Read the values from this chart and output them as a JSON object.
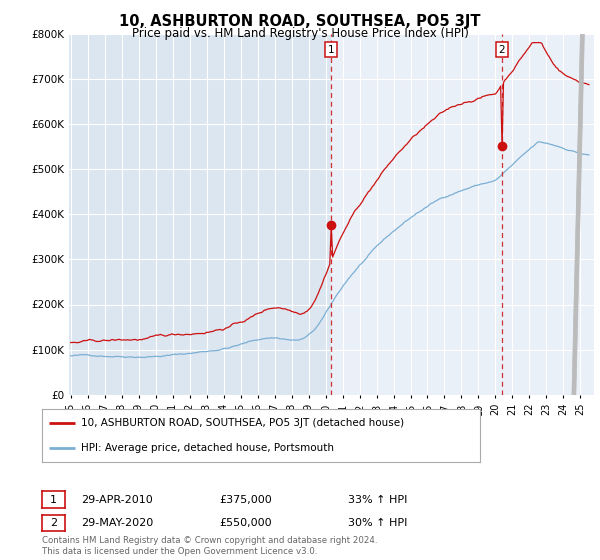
{
  "title": "10, ASHBURTON ROAD, SOUTHSEA, PO5 3JT",
  "subtitle": "Price paid vs. HM Land Registry's House Price Index (HPI)",
  "background_color": "#ffffff",
  "plot_bg_color": "#dce6f0",
  "plot_bg_color2": "#eaf0f8",
  "grid_color": "#ffffff",
  "hpi_color": "#7bafd4",
  "price_color": "#cc1111",
  "sale1_idx": 180,
  "sale2_idx": 300,
  "sale1": {
    "label": "1",
    "date": "29-APR-2010",
    "price": 375000,
    "hpi_pct": "33% ↑ HPI"
  },
  "sale2": {
    "label": "2",
    "date": "29-MAY-2020",
    "price": 550000,
    "hpi_pct": "30% ↑ HPI"
  },
  "legend_line1": "10, ASHBURTON ROAD, SOUTHSEA, PO5 3JT (detached house)",
  "legend_line2": "HPI: Average price, detached house, Portsmouth",
  "footer": "Contains HM Land Registry data © Crown copyright and database right 2024.\nThis data is licensed under the Open Government Licence v3.0.",
  "ylim": [
    0,
    800000
  ],
  "yticks": [
    0,
    100000,
    200000,
    300000,
    400000,
    500000,
    600000,
    700000,
    800000
  ],
  "ytick_labels": [
    "£0",
    "£100K",
    "£200K",
    "£300K",
    "£400K",
    "£500K",
    "£600K",
    "£700K",
    "£800K"
  ]
}
